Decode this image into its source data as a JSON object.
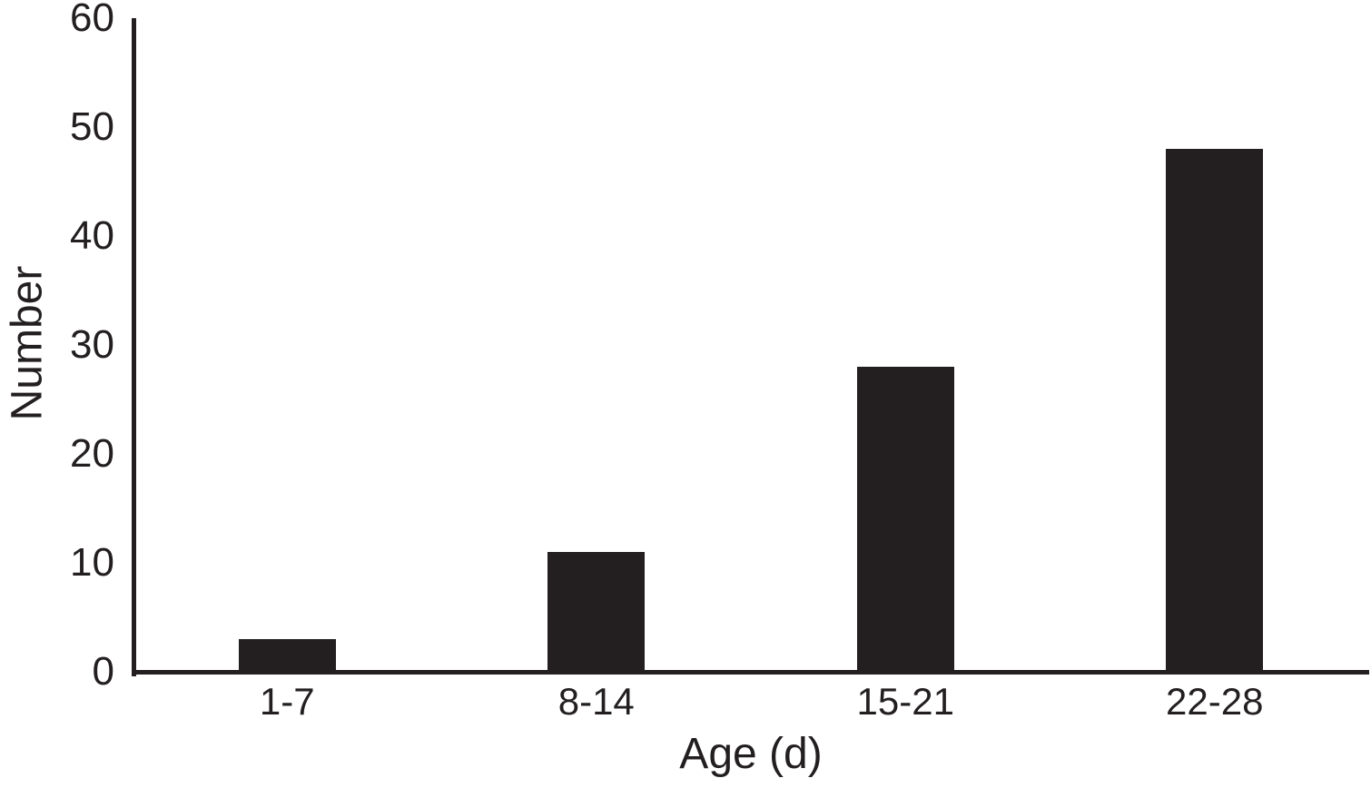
{
  "chart_data": {
    "type": "bar",
    "categories": [
      "1-7",
      "8-14",
      "15-21",
      "22-28"
    ],
    "values": [
      3,
      11,
      28,
      48
    ],
    "title": "",
    "xlabel": "Age (d)",
    "ylabel": "Number",
    "ylim": [
      0,
      60
    ],
    "yticks": [
      0,
      10,
      20,
      30,
      40,
      50,
      60
    ],
    "grid": false,
    "legend": "none",
    "bar_color": "#231f20",
    "axis_color": "#231f20",
    "background": "#ffffff"
  }
}
